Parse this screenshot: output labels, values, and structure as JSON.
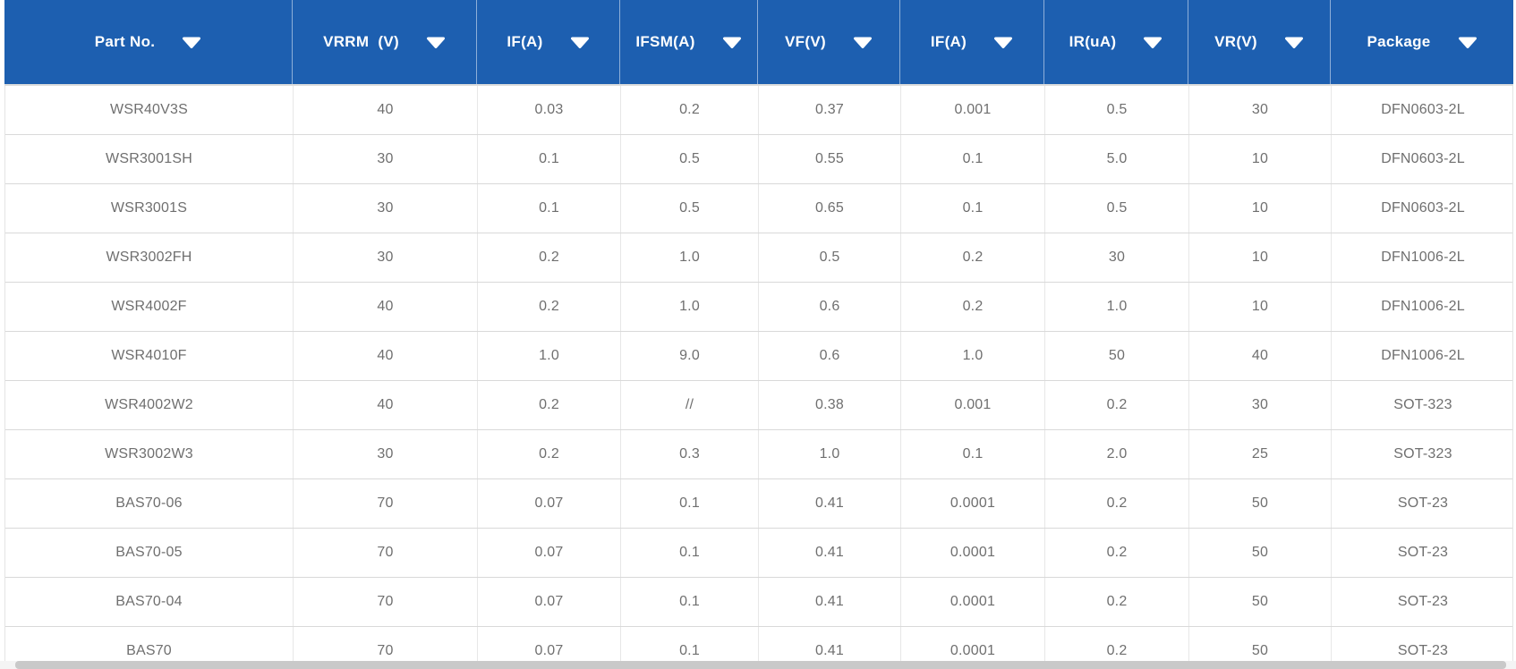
{
  "table": {
    "columns": [
      {
        "label": "Part No."
      },
      {
        "label": "VRRM  (V)"
      },
      {
        "label": "IF(A)"
      },
      {
        "label": "IFSM(A)"
      },
      {
        "label": "VF(V)"
      },
      {
        "label": "IF(A)"
      },
      {
        "label": "IR(uA)"
      },
      {
        "label": "VR(V)"
      },
      {
        "label": "Package"
      }
    ],
    "rows": [
      [
        "WSR40V3S",
        "40",
        "0.03",
        "0.2",
        "0.37",
        "0.001",
        "0.5",
        "30",
        "DFN0603-2L"
      ],
      [
        "WSR3001SH",
        "30",
        "0.1",
        "0.5",
        "0.55",
        "0.1",
        "5.0",
        "10",
        "DFN0603-2L"
      ],
      [
        "WSR3001S",
        "30",
        "0.1",
        "0.5",
        "0.65",
        "0.1",
        "0.5",
        "10",
        "DFN0603-2L"
      ],
      [
        "WSR3002FH",
        "30",
        "0.2",
        "1.0",
        "0.5",
        "0.2",
        "30",
        "10",
        "DFN1006-2L"
      ],
      [
        "WSR4002F",
        "40",
        "0.2",
        "1.0",
        "0.6",
        "0.2",
        "1.0",
        "10",
        "DFN1006-2L"
      ],
      [
        "WSR4010F",
        "40",
        "1.0",
        "9.0",
        "0.6",
        "1.0",
        "50",
        "40",
        "DFN1006-2L"
      ],
      [
        "WSR4002W2",
        "40",
        "0.2",
        "//",
        "0.38",
        "0.001",
        "0.2",
        "30",
        "SOT-323"
      ],
      [
        "WSR3002W3",
        "30",
        "0.2",
        "0.3",
        "1.0",
        "0.1",
        "2.0",
        "25",
        "SOT-323"
      ],
      [
        "BAS70-06",
        "70",
        "0.07",
        "0.1",
        "0.41",
        "0.0001",
        "0.2",
        "50",
        "SOT-23"
      ],
      [
        "BAS70-05",
        "70",
        "0.07",
        "0.1",
        "0.41",
        "0.0001",
        "0.2",
        "50",
        "SOT-23"
      ],
      [
        "BAS70-04",
        "70",
        "0.07",
        "0.1",
        "0.41",
        "0.0001",
        "0.2",
        "50",
        "SOT-23"
      ],
      [
        "BAS70",
        "70",
        "0.07",
        "0.1",
        "0.41",
        "0.0001",
        "0.2",
        "50",
        "SOT-23"
      ]
    ]
  },
  "icons": {
    "header_sort": "caret-down-icon"
  },
  "colors": {
    "header_bg": "#1d5fb0",
    "header_text": "#ffffff",
    "header_divider": "rgba(255,255,255,0.5)",
    "header_underline": "#dcdcdc",
    "row_text": "#6f6f6f",
    "row_border": "#d9d9d9",
    "column_border": "#e7e7e7",
    "scrollbar_thumb": "#c9c9c9",
    "scrollbar_track": "#f4f4f4"
  }
}
